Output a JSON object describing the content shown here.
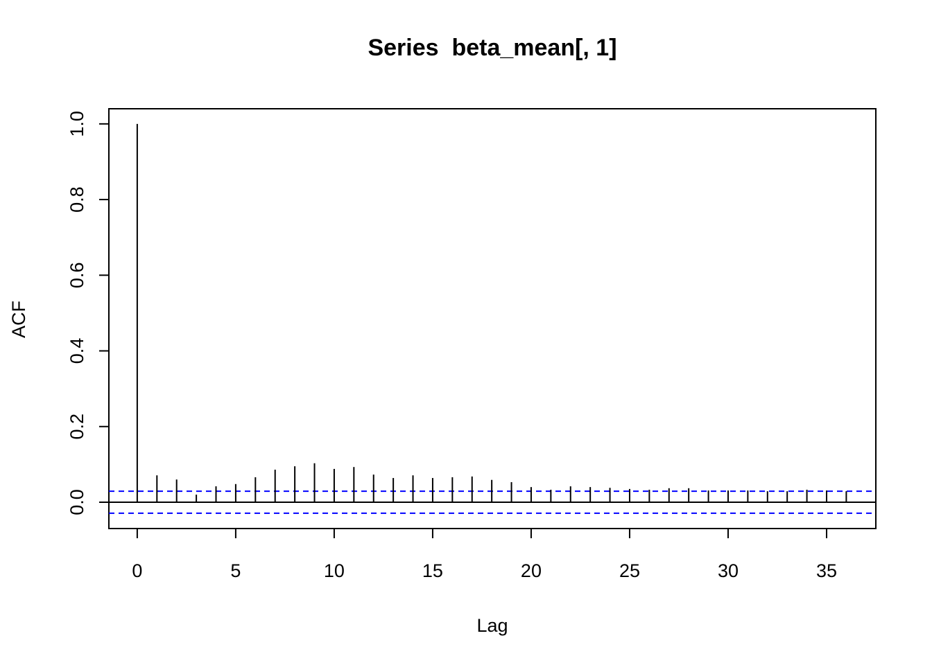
{
  "chart_data": {
    "type": "stem",
    "title": "Series  beta_mean[, 1]",
    "x_label": "Lag",
    "y_label": "ACF",
    "x": [
      0,
      1,
      2,
      3,
      4,
      5,
      6,
      7,
      8,
      9,
      10,
      11,
      12,
      13,
      14,
      15,
      16,
      17,
      18,
      19,
      20,
      21,
      22,
      23,
      24,
      25,
      26,
      27,
      28,
      29,
      30,
      31,
      32,
      33,
      34,
      35,
      36
    ],
    "values": [
      1.0,
      0.071,
      0.06,
      0.02,
      0.042,
      0.048,
      0.066,
      0.086,
      0.095,
      0.103,
      0.088,
      0.093,
      0.073,
      0.064,
      0.071,
      0.064,
      0.066,
      0.068,
      0.059,
      0.053,
      0.04,
      0.033,
      0.042,
      0.04,
      0.038,
      0.035,
      0.033,
      0.037,
      0.037,
      0.031,
      0.031,
      0.031,
      0.029,
      0.029,
      0.033,
      0.031,
      0.029
    ],
    "color": "#000000",
    "ci_lines": [
      0.029,
      -0.029
    ],
    "ci_color": "#0000ff",
    "xlim": [
      -1.44,
      37.5
    ],
    "ylim": [
      -0.0696,
      1.04
    ],
    "xticks": [
      0,
      5,
      10,
      15,
      20,
      25,
      30,
      35
    ],
    "yticks": [
      {
        "value": 0,
        "label": "0.0"
      },
      0.2,
      0.4,
      0.6,
      0.8,
      {
        "value": 1,
        "label": "1.0"
      }
    ]
  }
}
